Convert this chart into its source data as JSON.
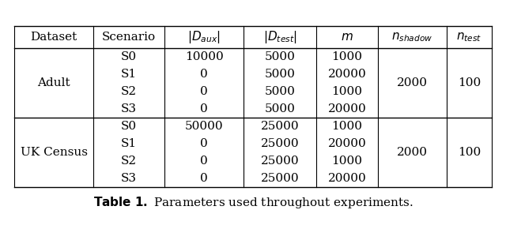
{
  "adult_rows": [
    [
      "S0",
      "10000",
      "5000",
      "1000"
    ],
    [
      "S1",
      "0",
      "5000",
      "20000"
    ],
    [
      "S2",
      "0",
      "5000",
      "1000"
    ],
    [
      "S3",
      "0",
      "5000",
      "20000"
    ]
  ],
  "ukcensus_rows": [
    [
      "S0",
      "50000",
      "25000",
      "1000"
    ],
    [
      "S1",
      "0",
      "25000",
      "20000"
    ],
    [
      "S2",
      "0",
      "25000",
      "1000"
    ],
    [
      "S3",
      "0",
      "25000",
      "20000"
    ]
  ],
  "n_shadow": "2000",
  "n_test": "100",
  "bg_color": "#ffffff",
  "line_color": "#000000",
  "text_color": "#000000",
  "fontsize": 11
}
